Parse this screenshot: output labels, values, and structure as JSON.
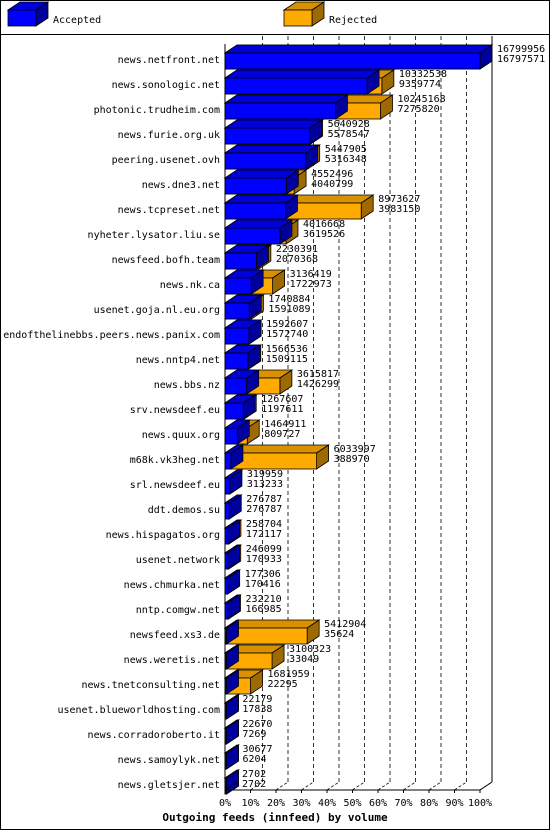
{
  "chart_data": {
    "type": "bar",
    "orientation": "horizontal",
    "stacking": "overlay",
    "title": "Outgoing feeds (innfeed) by volume",
    "legend": {
      "placement": "top",
      "entries": [
        "Accepted",
        "Rejected"
      ]
    },
    "x_ticks": [
      "0%",
      "10%",
      "20%",
      "30%",
      "40%",
      "50%",
      "60%",
      "70%",
      "80%",
      "90%",
      "100%"
    ],
    "xlim": [
      0,
      100
    ],
    "max_value": 16799956,
    "grid": "vertical dashed",
    "colors": {
      "Accepted": "#0000ff",
      "Rejected": "#ffaa00"
    },
    "categories": [
      "news.netfront.net",
      "news.sonologic.net",
      "photonic.trudheim.com",
      "news.furie.org.uk",
      "peering.usenet.ovh",
      "news.dne3.net",
      "news.tcpreset.net",
      "nyheter.lysator.liu.se",
      "newsfeed.bofh.team",
      "news.nk.ca",
      "usenet.goja.nl.eu.org",
      "endofthelinebbs.peers.news.panix.com",
      "news.nntp4.net",
      "news.bbs.nz",
      "srv.newsdeef.eu",
      "news.quux.org",
      "m68k.vk3heg.net",
      "srl.newsdeef.eu",
      "ddt.demos.su",
      "news.hispagatos.org",
      "usenet.network",
      "news.chmurka.net",
      "nntp.comgw.net",
      "newsfeed.xs3.de",
      "news.weretis.net",
      "news.tnetconsulting.net",
      "usenet.blueworldhosting.com",
      "news.corradoroberto.it",
      "news.samoylyk.net",
      "news.gletsjer.net"
    ],
    "series": [
      {
        "name": "Accepted",
        "values": [
          16797571,
          9359774,
          7275820,
          5578547,
          5316348,
          4040799,
          3983150,
          3619526,
          2070368,
          1722973,
          1591089,
          1572740,
          1509115,
          1426299,
          1197611,
          809727,
          388970,
          313233,
          276787,
          172117,
          170933,
          170416,
          166985,
          35624,
          33049,
          22295,
          17838,
          7269,
          6204,
          2702
        ]
      },
      {
        "name": "Rejected",
        "values": [
          16799956,
          10332538,
          10245168,
          5640928,
          5447905,
          4552496,
          8973627,
          4016668,
          2230391,
          3136419,
          1740884,
          1592607,
          1566536,
          3615817,
          1267607,
          1464911,
          6033997,
          319959,
          276787,
          258704,
          246099,
          177306,
          232210,
          5412904,
          3100323,
          1681959,
          22179,
          22670,
          30677,
          2702
        ]
      }
    ]
  }
}
